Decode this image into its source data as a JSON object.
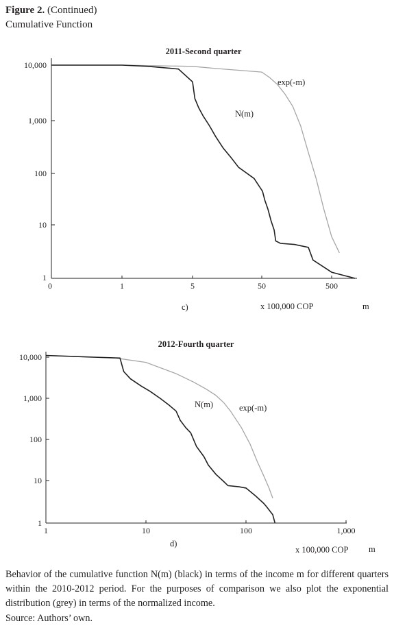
{
  "header": {
    "figure_label": "Figure 2.",
    "continued": "(Continued)",
    "subtitle": "Cumulative Function"
  },
  "chart_data": [
    {
      "type": "line",
      "title": "2011-Second quarter",
      "panel_label": "c)",
      "xlabel": "x 100,000 COP",
      "xvar": "m",
      "xscale": "log",
      "yscale": "log",
      "x_ticks": [
        "0",
        "1",
        "5",
        "50",
        "500"
      ],
      "y_ticks": [
        "10,000",
        "1,000",
        "100",
        "10",
        "1"
      ],
      "grid": false,
      "legend": "inline labels",
      "series": [
        {
          "name": "N(m)",
          "color": "#231f20",
          "points": [
            [
              0.0,
              10000
            ],
            [
              1.0,
              10000
            ],
            [
              2.5,
              9500
            ],
            [
              4.2,
              8500
            ],
            [
              5.0,
              5000
            ],
            [
              6.5,
              2500
            ],
            [
              9,
              1700
            ],
            [
              12,
              1200
            ],
            [
              16,
              800
            ],
            [
              20,
              500
            ],
            [
              25,
              300
            ],
            [
              30,
              200
            ],
            [
              35,
              130
            ],
            [
              45,
              80
            ],
            [
              55,
              45
            ],
            [
              70,
              30
            ],
            [
              90,
              20
            ],
            [
              110,
              12
            ],
            [
              130,
              8
            ],
            [
              140,
              5
            ],
            [
              170,
              4.5
            ],
            [
              260,
              4.3
            ],
            [
              350,
              3.8
            ],
            [
              380,
              2.2
            ],
            [
              500,
              1.3
            ],
            [
              650,
              1
            ]
          ]
        },
        {
          "name": "exp(-m)",
          "color": "#a6a6a6",
          "points": [
            [
              0.0,
              10000
            ],
            [
              1,
              10000
            ],
            [
              5,
              9500
            ],
            [
              20,
              8700
            ],
            [
              50,
              7500
            ],
            [
              100,
              6000
            ],
            [
              150,
              4500
            ],
            [
              200,
              3000
            ],
            [
              250,
              1800
            ],
            [
              300,
              800
            ],
            [
              350,
              250
            ],
            [
              400,
              80
            ],
            [
              450,
              20
            ],
            [
              500,
              6
            ],
            [
              550,
              3
            ]
          ]
        }
      ]
    },
    {
      "type": "line",
      "title": "2012-Fourth quarter",
      "panel_label": "d)",
      "xlabel": "x 100,000 COP",
      "xvar": "m",
      "xscale": "log",
      "yscale": "log",
      "xlim": [
        1,
        1000
      ],
      "ylim": [
        1,
        10000
      ],
      "x_ticks": [
        "1",
        "10",
        "100",
        "1,000"
      ],
      "y_ticks": [
        "10,000",
        "1,000",
        "100",
        "10",
        "1"
      ],
      "grid": false,
      "legend": "inline labels",
      "series": [
        {
          "name": "N(m)",
          "color": "#231f20",
          "points": [
            [
              1,
              11000
            ],
            [
              3,
              10000
            ],
            [
              5.5,
              9500
            ],
            [
              6,
              4500
            ],
            [
              7,
              3000
            ],
            [
              9,
              2000
            ],
            [
              11,
              1500
            ],
            [
              14,
              1000
            ],
            [
              17,
              700
            ],
            [
              20,
              500
            ],
            [
              22,
              300
            ],
            [
              25,
              200
            ],
            [
              28,
              150
            ],
            [
              32,
              70
            ],
            [
              38,
              40
            ],
            [
              42,
              25
            ],
            [
              50,
              15
            ],
            [
              60,
              10
            ],
            [
              66,
              8
            ],
            [
              85,
              7.5
            ],
            [
              100,
              7
            ],
            [
              125,
              4.5
            ],
            [
              140,
              3.5
            ],
            [
              150,
              3
            ],
            [
              160,
              2.5
            ],
            [
              185,
              1.6
            ],
            [
              195,
              1
            ]
          ]
        },
        {
          "name": "exp(-m)",
          "color": "#a6a6a6",
          "points": [
            [
              1,
              11000
            ],
            [
              5,
              9500
            ],
            [
              10,
              7500
            ],
            [
              20,
              4000
            ],
            [
              30,
              2500
            ],
            [
              40,
              1700
            ],
            [
              50,
              1200
            ],
            [
              60,
              800
            ],
            [
              70,
              500
            ],
            [
              90,
              200
            ],
            [
              110,
              80
            ],
            [
              130,
              30
            ],
            [
              150,
              14
            ],
            [
              170,
              7
            ],
            [
              185,
              4
            ]
          ]
        }
      ]
    }
  ],
  "caption": "Behavior of the cumulative function N(m) (black) in terms of the income m for different quarters within the 2010-2012 period. For the purposes of comparison we also plot the exponential distribution (grey) in terms of the normalized income.",
  "source": "Source: Authors’ own."
}
